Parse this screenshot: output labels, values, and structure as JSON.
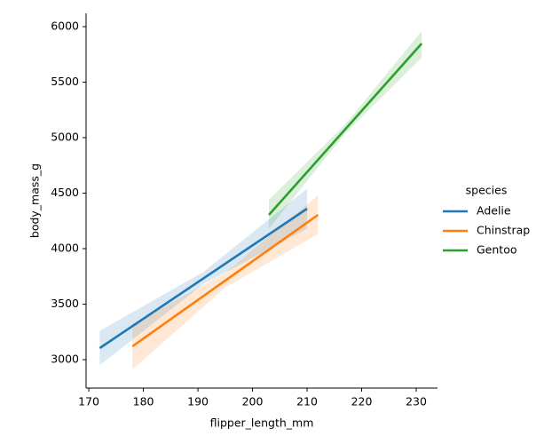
{
  "chart_data": {
    "type": "regression",
    "x_label": "flipper_length_mm",
    "y_label": "body_mass_g",
    "legend_title": "species",
    "legend_position": "right",
    "xlim": [
      169.5,
      233.9
    ],
    "ylim": [
      2744,
      6120
    ],
    "xticks": [
      170,
      180,
      190,
      200,
      210,
      220,
      230
    ],
    "yticks": [
      3000,
      3500,
      4000,
      4500,
      5000,
      5500,
      6000
    ],
    "series": [
      {
        "name": "Adelie",
        "color": "#1f77b4",
        "x": [
          172,
          210
        ],
        "values": [
          3104,
          4360
        ],
        "band_x": [
          172,
          191,
          210
        ],
        "band_lower": [
          2950,
          3680,
          4180
        ],
        "band_upper": [
          3260,
          3790,
          4540
        ]
      },
      {
        "name": "Chinstrap",
        "color": "#ff7f0e",
        "x": [
          178,
          212
        ],
        "values": [
          3120,
          4304
        ],
        "band_x": [
          178,
          195,
          212
        ],
        "band_lower": [
          2910,
          3650,
          4130
        ],
        "band_upper": [
          3320,
          3780,
          4480
        ]
      },
      {
        "name": "Gentoo",
        "color": "#2ca02c",
        "x": [
          203,
          231
        ],
        "values": [
          4304,
          5848
        ],
        "band_x": [
          203,
          217,
          231
        ],
        "band_lower": [
          4180,
          5040,
          5720
        ],
        "band_upper": [
          4440,
          5120,
          5960
        ]
      }
    ]
  }
}
